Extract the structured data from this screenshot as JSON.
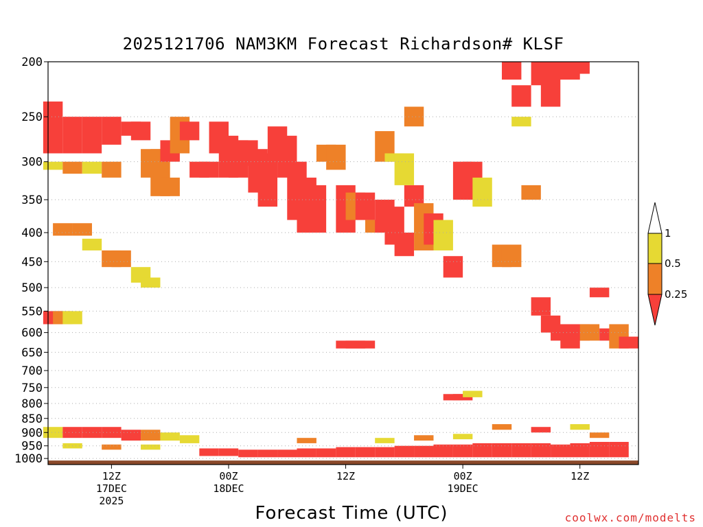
{
  "title": "2025121706 NAM3KM Forecast Richardson# KLSF",
  "xlabel": "Forecast Time (UTC)",
  "credit": "coolwx.com/modelts",
  "colors": {
    "high": "#e6d933",
    "mid": "#ee8128",
    "low": "#f7403a",
    "ground": "#8b4a2b",
    "grid": "#aaaaaa"
  },
  "chart_data": {
    "type": "heatmap",
    "title": "2025121706 NAM3KM Forecast Richardson# KLSF",
    "xlabel": "Forecast Time (UTC)",
    "ylabel": "",
    "y_scale": "log-pressure",
    "y_reversed": true,
    "ylim": [
      1025,
      200
    ],
    "xlim": [
      -6.5,
      54
    ],
    "y_ticks": [
      200,
      250,
      300,
      350,
      400,
      450,
      500,
      550,
      600,
      650,
      700,
      750,
      800,
      850,
      900,
      950,
      1000
    ],
    "x_ticks": [
      {
        "hour": 0,
        "label": [
          "12Z",
          "17DEC",
          "2025"
        ]
      },
      {
        "hour": 12,
        "label": [
          "00Z",
          "18DEC"
        ]
      },
      {
        "hour": 24,
        "label": [
          "12Z"
        ]
      },
      {
        "hour": 36,
        "label": [
          "00Z",
          "19DEC"
        ]
      },
      {
        "hour": 48,
        "label": [
          "12Z"
        ]
      }
    ],
    "grid": "dotted horizontal at pressure ticks",
    "legend": {
      "placement": "right",
      "bins": [
        {
          "range": "< 0.25",
          "color": "#f7403a"
        },
        {
          "range": "0.25 - 0.5",
          "color": "#ee8128"
        },
        {
          "range": "0.5 - 1",
          "color": "#e6d933"
        },
        {
          "range": "> 1",
          "color": "#ffffff"
        }
      ],
      "labels": [
        "1",
        "0.5",
        "0.25"
      ]
    },
    "categories": [
      "low",
      "mid",
      "high"
    ],
    "cells": [
      [
        -6,
        235,
        290,
        "low"
      ],
      [
        -4,
        250,
        290,
        "low"
      ],
      [
        -2,
        250,
        290,
        "low"
      ],
      [
        0,
        250,
        280,
        "low"
      ],
      [
        -6,
        300,
        310,
        "high"
      ],
      [
        -4,
        300,
        315,
        "mid"
      ],
      [
        -2,
        300,
        315,
        "high"
      ],
      [
        0,
        300,
        320,
        "mid"
      ],
      [
        -5,
        385,
        405,
        "mid"
      ],
      [
        -3,
        385,
        405,
        "mid"
      ],
      [
        -2,
        410,
        430,
        "high"
      ],
      [
        2,
        255,
        270,
        "low"
      ],
      [
        3,
        255,
        275,
        "low"
      ],
      [
        4,
        285,
        320,
        "mid"
      ],
      [
        5,
        285,
        345,
        "mid"
      ],
      [
        6,
        275,
        300,
        "low"
      ],
      [
        6,
        320,
        345,
        "mid"
      ],
      [
        7,
        250,
        290,
        "mid"
      ],
      [
        8,
        255,
        275,
        "low"
      ],
      [
        9,
        300,
        320,
        "low"
      ],
      [
        10,
        300,
        320,
        "low"
      ],
      [
        11,
        255,
        290,
        "low"
      ],
      [
        12,
        270,
        320,
        "low"
      ],
      [
        13,
        275,
        320,
        "low"
      ],
      [
        14,
        275,
        305,
        "low"
      ],
      [
        15,
        285,
        340,
        "low"
      ],
      [
        16,
        290,
        360,
        "low"
      ],
      [
        17,
        260,
        300,
        "low"
      ],
      [
        18,
        270,
        320,
        "low"
      ],
      [
        19,
        300,
        380,
        "low"
      ],
      [
        20,
        320,
        400,
        "low"
      ],
      [
        21,
        330,
        400,
        "low"
      ],
      [
        22,
        280,
        300,
        "mid"
      ],
      [
        23,
        280,
        310,
        "mid"
      ],
      [
        24,
        330,
        400,
        "low"
      ],
      [
        25,
        340,
        380,
        "mid"
      ],
      [
        26,
        340,
        380,
        "low"
      ],
      [
        27,
        380,
        400,
        "mid"
      ],
      [
        28,
        350,
        400,
        "low"
      ],
      [
        29,
        360,
        420,
        "low"
      ],
      [
        30,
        400,
        440,
        "low"
      ],
      [
        31,
        330,
        360,
        "low"
      ],
      [
        32,
        355,
        430,
        "mid"
      ],
      [
        33,
        370,
        420,
        "low"
      ],
      [
        34,
        380,
        430,
        "high"
      ],
      [
        28,
        265,
        300,
        "mid"
      ],
      [
        29,
        290,
        300,
        "high"
      ],
      [
        30,
        290,
        330,
        "high"
      ],
      [
        31,
        240,
        260,
        "mid"
      ],
      [
        35,
        440,
        480,
        "low"
      ],
      [
        36,
        300,
        350,
        "low"
      ],
      [
        37,
        300,
        350,
        "low"
      ],
      [
        38,
        320,
        360,
        "high"
      ],
      [
        40,
        420,
        460,
        "mid"
      ],
      [
        41,
        420,
        460,
        "mid"
      ],
      [
        42,
        250,
        260,
        "high"
      ],
      [
        43,
        330,
        350,
        "mid"
      ],
      [
        44,
        520,
        560,
        "low"
      ],
      [
        45,
        560,
        600,
        "low"
      ],
      [
        46,
        580,
        620,
        "low"
      ],
      [
        47,
        600,
        640,
        "low"
      ],
      [
        48,
        580,
        620,
        "low"
      ],
      [
        49,
        580,
        620,
        "mid"
      ],
      [
        50,
        500,
        520,
        "low"
      ],
      [
        51,
        590,
        620,
        "low"
      ],
      [
        52,
        580,
        640,
        "mid"
      ],
      [
        53,
        610,
        640,
        "low"
      ],
      [
        41,
        200,
        215,
        "low"
      ],
      [
        42,
        220,
        240,
        "low"
      ],
      [
        44,
        200,
        220,
        "low"
      ],
      [
        45,
        200,
        240,
        "low"
      ],
      [
        46,
        200,
        215,
        "low"
      ],
      [
        47,
        200,
        215,
        "low"
      ],
      [
        48,
        200,
        210,
        "low"
      ],
      [
        24,
        620,
        640,
        "low"
      ],
      [
        25,
        620,
        640,
        "low"
      ],
      [
        26,
        620,
        640,
        "low"
      ],
      [
        35,
        770,
        790,
        "low"
      ],
      [
        36,
        770,
        790,
        "low"
      ],
      [
        37,
        760,
        780,
        "high"
      ],
      [
        -6,
        550,
        580,
        "low"
      ],
      [
        -5,
        550,
        580,
        "mid"
      ],
      [
        -4,
        550,
        580,
        "high"
      ],
      [
        0,
        430,
        460,
        "mid"
      ],
      [
        1,
        430,
        460,
        "mid"
      ],
      [
        3,
        460,
        490,
        "high"
      ],
      [
        4,
        480,
        500,
        "high"
      ]
    ],
    "boundary_layer": [
      [
        -6,
        880,
        920,
        "high"
      ],
      [
        -4,
        880,
        920,
        "low"
      ],
      [
        -2,
        880,
        920,
        "low"
      ],
      [
        0,
        880,
        920,
        "low"
      ],
      [
        2,
        890,
        930,
        "low"
      ],
      [
        4,
        890,
        930,
        "mid"
      ],
      [
        6,
        900,
        930,
        "high"
      ],
      [
        8,
        910,
        940,
        "high"
      ],
      [
        10,
        960,
        990,
        "low"
      ],
      [
        12,
        960,
        990,
        "low"
      ],
      [
        14,
        965,
        995,
        "low"
      ],
      [
        16,
        965,
        995,
        "low"
      ],
      [
        18,
        965,
        995,
        "low"
      ],
      [
        20,
        960,
        995,
        "low"
      ],
      [
        22,
        960,
        995,
        "low"
      ],
      [
        24,
        955,
        995,
        "low"
      ],
      [
        26,
        955,
        995,
        "low"
      ],
      [
        28,
        955,
        995,
        "low"
      ],
      [
        30,
        950,
        995,
        "low"
      ],
      [
        32,
        950,
        995,
        "low"
      ],
      [
        34,
        945,
        995,
        "low"
      ],
      [
        36,
        945,
        995,
        "low"
      ],
      [
        38,
        940,
        995,
        "low"
      ],
      [
        40,
        940,
        995,
        "low"
      ],
      [
        42,
        940,
        995,
        "low"
      ],
      [
        44,
        940,
        995,
        "low"
      ],
      [
        46,
        945,
        995,
        "low"
      ],
      [
        48,
        940,
        995,
        "low"
      ],
      [
        50,
        935,
        995,
        "low"
      ],
      [
        52,
        935,
        995,
        "low"
      ],
      [
        -4,
        940,
        960,
        "high"
      ],
      [
        0,
        945,
        965,
        "mid"
      ],
      [
        4,
        945,
        965,
        "high"
      ],
      [
        20,
        920,
        940,
        "mid"
      ],
      [
        28,
        920,
        940,
        "high"
      ],
      [
        32,
        910,
        930,
        "mid"
      ],
      [
        36,
        905,
        925,
        "high"
      ],
      [
        40,
        870,
        890,
        "mid"
      ],
      [
        44,
        880,
        900,
        "low"
      ],
      [
        48,
        870,
        890,
        "high"
      ],
      [
        50,
        900,
        920,
        "mid"
      ]
    ],
    "ground": {
      "from_pressure": 1000
    }
  }
}
